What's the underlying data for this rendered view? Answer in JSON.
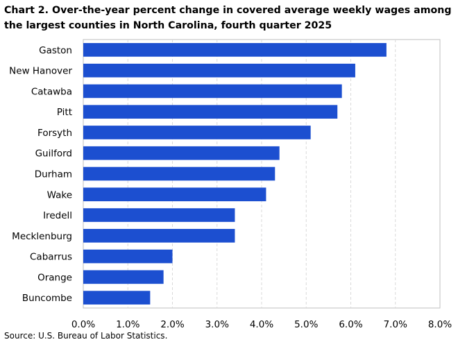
{
  "chart_data": {
    "type": "bar",
    "orientation": "horizontal",
    "title": "Chart 2. Over-the-year percent change in covered average weekly wages among the largest counties in North Carolina, fourth quarter 2025",
    "categories": [
      "Gaston",
      "New Hanover",
      "Catawba",
      "Pitt",
      "Forsyth",
      "Guilford",
      "Durham",
      "Wake",
      "Iredell",
      "Mecklenburg",
      "Cabarrus",
      "Orange",
      "Buncombe"
    ],
    "values": [
      6.8,
      6.1,
      5.8,
      5.7,
      5.1,
      4.4,
      4.3,
      4.1,
      3.4,
      3.4,
      2.0,
      1.8,
      1.5
    ],
    "xlabel": "",
    "ylabel": "",
    "xlim": [
      0,
      8
    ],
    "x_ticks": [
      "0.0%",
      "1.0%",
      "2.0%",
      "3.0%",
      "4.0%",
      "5.0%",
      "6.0%",
      "7.0%",
      "8.0%"
    ],
    "x_tick_values": [
      0,
      1,
      2,
      3,
      4,
      5,
      6,
      7,
      8
    ],
    "grid": "vertical dashed",
    "legend": "none",
    "bar_color": "#1c4fd0",
    "grid_color": "#d9d9d9"
  },
  "footer": {
    "source": "Source: U.S. Bureau of Labor Statistics."
  }
}
